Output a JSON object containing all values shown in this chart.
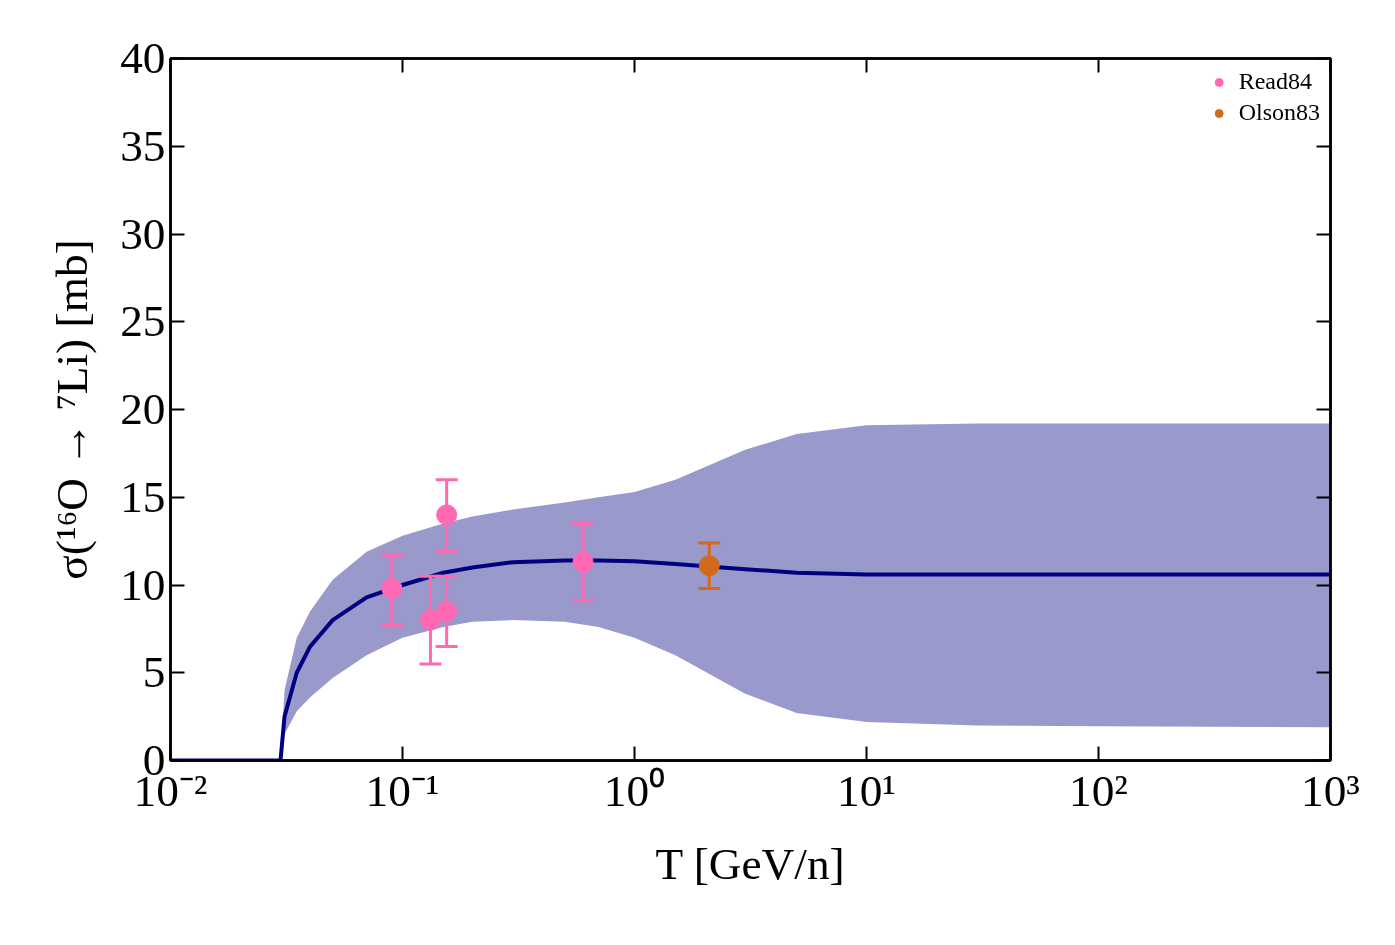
{
  "chart_data": {
    "type": "scatter",
    "xlabel": "T [GeV/n]",
    "ylabel": "σ(¹⁶O → ⁷Li) [mb]",
    "log": "x",
    "xlim": [
      0.01,
      1000
    ],
    "ylim": [
      0,
      40
    ],
    "xticks": [
      {
        "value": 0.01,
        "label": "10⁻²"
      },
      {
        "value": 0.1,
        "label": "10⁻¹"
      },
      {
        "value": 1,
        "label": "10⁰"
      },
      {
        "value": 10,
        "label": "10¹"
      },
      {
        "value": 100,
        "label": "10²"
      },
      {
        "value": 1000,
        "label": "10³"
      }
    ],
    "yticks": [
      0,
      5,
      10,
      15,
      20,
      25,
      30,
      35,
      40
    ],
    "grid": false,
    "legend": "top right",
    "marker": "circle",
    "series": [
      {
        "type": "line",
        "marker": "none",
        "color": "#000080",
        "x": [
          0.01,
          0.0298,
          0.031,
          0.035,
          0.04,
          0.05,
          0.07,
          0.1,
          0.15,
          0.2,
          0.3,
          0.5,
          0.7,
          1,
          1.5,
          3,
          5,
          10,
          30,
          100,
          1000
        ],
        "values": [
          0,
          0,
          2.5,
          5,
          6.5,
          8,
          9.3,
          10,
          10.7,
          11,
          11.3,
          11.4,
          11.4,
          11.35,
          11.2,
          10.9,
          10.7,
          10.6,
          10.6,
          10.6,
          10.6
        ],
        "lower": [
          0,
          0,
          1.5,
          2.8,
          3.6,
          4.7,
          6.0,
          7.0,
          7.6,
          7.9,
          8.0,
          7.9,
          7.6,
          7.0,
          6.0,
          3.8,
          2.7,
          2.2,
          2.0,
          1.95,
          1.9
        ],
        "upper": [
          0,
          0,
          4,
          7,
          8.5,
          10.3,
          11.9,
          12.8,
          13.5,
          13.9,
          14.3,
          14.7,
          15.0,
          15.3,
          16.0,
          17.7,
          18.6,
          19.1,
          19.2,
          19.2,
          19.2
        ]
      },
      {
        "name": "Read84",
        "color": "#ff69b4",
        "x": [
          0.09,
          0.132,
          0.155,
          0.155,
          0.6
        ],
        "values": [
          9.8,
          8.0,
          14.0,
          8.5,
          11.3
        ],
        "errors": [
          [
            7.7,
            11.7
          ],
          [
            5.5,
            10.5
          ],
          [
            11.9,
            16.0
          ],
          [
            6.5,
            10.5
          ],
          [
            9.1,
            13.5
          ]
        ]
      },
      {
        "name": "Olson83",
        "color": "#d2691e",
        "x": [
          2.1
        ],
        "values": [
          11.1
        ],
        "errors": [
          [
            9.8,
            12.4
          ]
        ]
      }
    ]
  }
}
